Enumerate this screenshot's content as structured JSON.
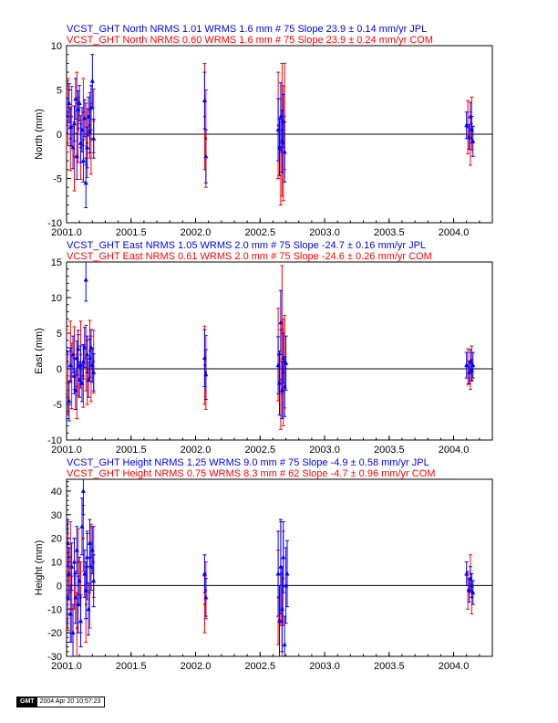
{
  "colors": {
    "jpl": "#0000ff",
    "com": "#ff0000",
    "axis": "#000000"
  },
  "footer": {
    "logo": "GMT",
    "timestamp": "2004 Apr 20 10:57:23"
  },
  "chart_data": [
    {
      "type": "scatter",
      "header_jpl": "VCST_GHT North NRMS 1.01 WRMS  1.6 mm # 75 Slope   23.9 ±  0.14 mm/yr JPL",
      "header_com": "VCST_GHT North NRMS 0.60 WRMS  1.6 mm # 75 Slope   23.9 ±  0.24 mm/yr COM",
      "xlabel": "",
      "ylabel": "North (mm)",
      "xlim": [
        2001.0,
        2004.3
      ],
      "ylim": [
        -10,
        10
      ],
      "xticks": [
        "2001.0",
        "2001.5",
        "2002.0",
        "2002.5",
        "2003.0",
        "2003.5",
        "2004.0"
      ],
      "yticks": [
        "-10",
        "-5",
        "0",
        "5",
        "10"
      ],
      "zero_line": true,
      "series": [
        {
          "name": "JPL",
          "points": [
            [
              2001.0,
              2.1,
              2.0
            ],
            [
              2001.02,
              3.5,
              2.2
            ],
            [
              2001.03,
              0.8,
              2.1
            ],
            [
              2001.05,
              -1.5,
              2.4
            ],
            [
              2001.06,
              1.2,
              2.0
            ],
            [
              2001.07,
              4.0,
              2.3
            ],
            [
              2001.08,
              -2.5,
              2.6
            ],
            [
              2001.09,
              2.8,
              2.1
            ],
            [
              2001.1,
              3.5,
              2.0
            ],
            [
              2001.11,
              -1.0,
              2.2
            ],
            [
              2001.12,
              0.5,
              2.5
            ],
            [
              2001.13,
              -3.0,
              2.4
            ],
            [
              2001.14,
              1.8,
              2.1
            ],
            [
              2001.15,
              -5.5,
              2.8
            ],
            [
              2001.16,
              -1.5,
              2.3
            ],
            [
              2001.17,
              2.0,
              2.2
            ],
            [
              2001.18,
              0.3,
              2.4
            ],
            [
              2001.19,
              3.0,
              2.5
            ],
            [
              2001.2,
              6.0,
              3.0
            ],
            [
              2001.21,
              -0.5,
              2.2
            ],
            [
              2002.07,
              3.8,
              3.2
            ],
            [
              2002.08,
              -2.5,
              3.0
            ],
            [
              2002.64,
              0.5,
              3.5
            ],
            [
              2002.65,
              -1.5,
              3.2
            ],
            [
              2002.66,
              2.0,
              3.8
            ],
            [
              2002.67,
              -0.8,
              3.5
            ],
            [
              2002.68,
              1.5,
              3.0
            ],
            [
              2002.69,
              -2.0,
              3.4
            ],
            [
              2004.1,
              1.0,
              1.5
            ],
            [
              2004.12,
              -0.3,
              1.4
            ],
            [
              2004.13,
              2.0,
              1.6
            ],
            [
              2004.14,
              0.5,
              1.5
            ],
            [
              2004.15,
              -0.8,
              1.7
            ]
          ]
        },
        {
          "name": "COM",
          "points": [
            [
              2001.0,
              1.5,
              3.5
            ],
            [
              2001.01,
              2.5,
              3.8
            ],
            [
              2001.03,
              -0.5,
              3.6
            ],
            [
              2001.04,
              2.0,
              3.4
            ],
            [
              2001.06,
              -2.5,
              3.9
            ],
            [
              2001.08,
              3.5,
              3.5
            ],
            [
              2001.09,
              0.5,
              3.7
            ],
            [
              2001.11,
              -1.5,
              3.6
            ],
            [
              2001.13,
              2.5,
              3.8
            ],
            [
              2001.15,
              0.0,
              3.5
            ],
            [
              2001.16,
              -1.0,
              3.9
            ],
            [
              2001.18,
              1.0,
              3.7
            ],
            [
              2001.19,
              -0.5,
              4.0
            ],
            [
              2001.21,
              1.5,
              3.6
            ],
            [
              2002.07,
              2.0,
              6.0
            ],
            [
              2002.08,
              -0.5,
              5.5
            ],
            [
              2002.64,
              1.0,
              6.0
            ],
            [
              2002.66,
              -2.0,
              6.0
            ],
            [
              2002.67,
              0.5,
              7.5
            ],
            [
              2002.68,
              -1.0,
              6.5
            ],
            [
              2002.69,
              2.0,
              6.0
            ],
            [
              2004.11,
              0.8,
              3.0
            ],
            [
              2004.13,
              -0.5,
              3.0
            ],
            [
              2004.14,
              1.2,
              3.0
            ]
          ]
        }
      ]
    },
    {
      "type": "scatter",
      "header_jpl": "VCST_GHT East NRMS 1.05 WRMS  2.0 mm # 75 Slope  -24.7 ±  0.16 mm/yr JPL",
      "header_com": "VCST_GHT East NRMS 0.61 WRMS  2.0 mm # 75 Slope  -24.6 ±  0.26 mm/yr COM",
      "xlabel": "",
      "ylabel": "East (mm)",
      "xlim": [
        2001.0,
        2004.3
      ],
      "ylim": [
        -10,
        15
      ],
      "xticks": [
        "2001.0",
        "2001.5",
        "2002.0",
        "2002.5",
        "2003.0",
        "2003.5",
        "2004.0"
      ],
      "yticks": [
        "-10",
        "-5",
        "0",
        "5",
        "10",
        "15"
      ],
      "zero_line": true,
      "series": [
        {
          "name": "JPL",
          "points": [
            [
              2001.0,
              2.5,
              2.5
            ],
            [
              2001.02,
              -4.5,
              2.8
            ],
            [
              2001.03,
              0.5,
              2.4
            ],
            [
              2001.05,
              2.0,
              2.6
            ],
            [
              2001.06,
              -1.0,
              2.5
            ],
            [
              2001.07,
              -3.0,
              2.7
            ],
            [
              2001.08,
              1.5,
              2.4
            ],
            [
              2001.09,
              2.8,
              2.6
            ],
            [
              2001.1,
              -1.5,
              2.5
            ],
            [
              2001.11,
              0.5,
              2.7
            ],
            [
              2001.12,
              -2.0,
              2.6
            ],
            [
              2001.13,
              1.0,
              2.4
            ],
            [
              2001.14,
              3.0,
              2.8
            ],
            [
              2001.15,
              12.5,
              3.0
            ],
            [
              2001.16,
              2.0,
              2.6
            ],
            [
              2001.17,
              -1.5,
              2.5
            ],
            [
              2001.18,
              1.5,
              2.7
            ],
            [
              2001.19,
              3.0,
              2.5
            ],
            [
              2001.2,
              0.5,
              2.4
            ],
            [
              2001.21,
              -0.5,
              2.6
            ],
            [
              2002.07,
              1.5,
              4.0
            ],
            [
              2002.08,
              -0.8,
              3.5
            ],
            [
              2002.64,
              0.5,
              4.0
            ],
            [
              2002.65,
              -2.0,
              4.5
            ],
            [
              2002.66,
              6.5,
              4.5
            ],
            [
              2002.67,
              -3.0,
              4.0
            ],
            [
              2002.68,
              1.5,
              3.5
            ],
            [
              2002.69,
              -2.5,
              4.2
            ],
            [
              2002.7,
              0.8,
              3.8
            ],
            [
              2004.1,
              0.5,
              1.8
            ],
            [
              2004.12,
              -0.5,
              1.6
            ],
            [
              2004.13,
              1.0,
              1.7
            ],
            [
              2004.14,
              -0.2,
              1.5
            ],
            [
              2004.15,
              0.5,
              1.8
            ]
          ]
        },
        {
          "name": "COM",
          "points": [
            [
              2001.0,
              1.0,
              4.5
            ],
            [
              2001.01,
              -2.0,
              4.5
            ],
            [
              2001.03,
              2.5,
              4.2
            ],
            [
              2001.04,
              -1.0,
              4.6
            ],
            [
              2001.06,
              1.5,
              4.4
            ],
            [
              2001.08,
              -2.5,
              4.5
            ],
            [
              2001.09,
              0.5,
              4.3
            ],
            [
              2001.11,
              2.0,
              4.7
            ],
            [
              2001.13,
              -1.0,
              4.4
            ],
            [
              2001.15,
              1.5,
              4.6
            ],
            [
              2001.16,
              -0.5,
              4.5
            ],
            [
              2001.18,
              2.5,
              4.3
            ],
            [
              2001.19,
              0.0,
              4.6
            ],
            [
              2001.21,
              1.0,
              4.4
            ],
            [
              2002.07,
              0.5,
              5.5
            ],
            [
              2002.08,
              -0.5,
              5.2
            ],
            [
              2002.64,
              2.0,
              6.5
            ],
            [
              2002.66,
              -1.5,
              7.0
            ],
            [
              2002.67,
              5.5,
              9.0
            ],
            [
              2002.68,
              -0.5,
              7.5
            ],
            [
              2002.69,
              1.0,
              6.5
            ],
            [
              2004.11,
              0.3,
              2.5
            ],
            [
              2004.13,
              -0.3,
              2.6
            ],
            [
              2004.14,
              0.8,
              2.4
            ]
          ]
        }
      ]
    },
    {
      "type": "scatter",
      "header_jpl": "VCST_GHT Height NRMS 1.25 WRMS  9.0 mm # 75 Slope   -4.9 ±  0.58 mm/yr JPL",
      "header_com": "VCST_GHT Height NRMS 0.75 WRMS  8.3 mm # 62 Slope   -4.7 ±  0.96 mm/yr COM",
      "xlabel": "",
      "ylabel": "Height (mm)",
      "xlim": [
        2001.0,
        2004.3
      ],
      "ylim": [
        -30,
        45
      ],
      "xticks": [
        "2001.0",
        "2001.5",
        "2002.0",
        "2002.5",
        "2003.0",
        "2003.5",
        "2004.0"
      ],
      "yticks": [
        "-30",
        "-20",
        "-10",
        "0",
        "10",
        "20",
        "30",
        "40"
      ],
      "zero_line": true,
      "series": [
        {
          "name": "JPL",
          "points": [
            [
              2001.0,
              -5.0,
              10
            ],
            [
              2001.01,
              18.0,
              10
            ],
            [
              2001.02,
              5.0,
              11
            ],
            [
              2001.03,
              -12.0,
              12
            ],
            [
              2001.04,
              8.0,
              10
            ],
            [
              2001.05,
              -20.0,
              12
            ],
            [
              2001.06,
              10.0,
              10
            ],
            [
              2001.07,
              -5.0,
              11
            ],
            [
              2001.08,
              15.0,
              10
            ],
            [
              2001.09,
              -8.0,
              12
            ],
            [
              2001.1,
              2.0,
              10
            ],
            [
              2001.11,
              -15.0,
              11
            ],
            [
              2001.12,
              25.0,
              12
            ],
            [
              2001.13,
              40.0,
              10
            ],
            [
              2001.14,
              5.0,
              10
            ],
            [
              2001.15,
              -2.0,
              12
            ],
            [
              2001.16,
              12.0,
              11
            ],
            [
              2001.17,
              -10.0,
              11
            ],
            [
              2001.18,
              18.0,
              10
            ],
            [
              2001.19,
              8.0,
              10
            ],
            [
              2001.2,
              15.0,
              10
            ],
            [
              2001.21,
              2.0,
              11
            ],
            [
              2002.07,
              5.0,
              8
            ],
            [
              2002.08,
              -5.0,
              8
            ],
            [
              2002.64,
              5.0,
              18
            ],
            [
              2002.65,
              -15.0,
              15
            ],
            [
              2002.66,
              8.0,
              20
            ],
            [
              2002.67,
              -10.0,
              18
            ],
            [
              2002.68,
              12.0,
              15
            ],
            [
              2002.69,
              -25.0,
              12
            ],
            [
              2002.7,
              0.0,
              16
            ],
            [
              2002.71,
              5.0,
              14
            ],
            [
              2004.1,
              5.0,
              5
            ],
            [
              2004.12,
              -2.0,
              5
            ],
            [
              2004.13,
              3.0,
              5
            ],
            [
              2004.14,
              0.0,
              5
            ],
            [
              2004.15,
              -3.0,
              5
            ]
          ]
        },
        {
          "name": "COM",
          "points": [
            [
              2001.0,
              8.0,
              14
            ],
            [
              2001.01,
              -5.0,
              14
            ],
            [
              2001.03,
              12.0,
              15
            ],
            [
              2001.04,
              -10.0,
              14
            ],
            [
              2001.06,
              5.0,
              15
            ],
            [
              2001.08,
              -18.0,
              15
            ],
            [
              2001.09,
              10.0,
              14
            ],
            [
              2001.11,
              -5.0,
              15
            ],
            [
              2001.13,
              20.0,
              14
            ],
            [
              2001.15,
              -8.0,
              16
            ],
            [
              2001.16,
              8.0,
              14
            ],
            [
              2001.18,
              -3.0,
              15
            ],
            [
              2001.19,
              12.0,
              14
            ],
            [
              2001.21,
              10.0,
              15
            ],
            [
              2002.07,
              -8.0,
              12
            ],
            [
              2002.08,
              -2.0,
              12
            ],
            [
              2002.64,
              -5.0,
              20
            ],
            [
              2002.66,
              5.0,
              22
            ],
            [
              2002.67,
              -15.0,
              20
            ],
            [
              2002.68,
              3.0,
              20
            ],
            [
              2004.11,
              -2.0,
              8
            ],
            [
              2004.13,
              5.0,
              8
            ],
            [
              2004.14,
              -5.0,
              7
            ]
          ]
        }
      ]
    }
  ]
}
